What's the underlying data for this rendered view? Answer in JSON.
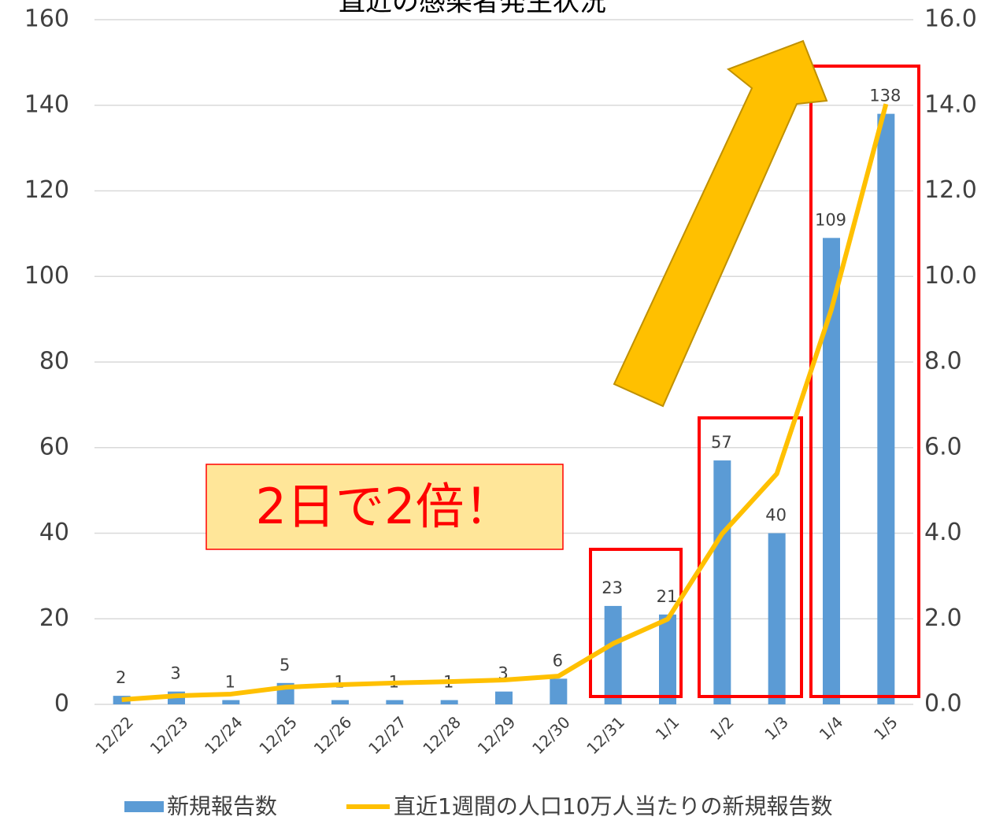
{
  "chart_data": {
    "type": "bar_line",
    "title": "直近の感染者発生状況",
    "categories": [
      "12/22",
      "12/23",
      "12/24",
      "12/25",
      "12/26",
      "12/27",
      "12/28",
      "12/29",
      "12/30",
      "12/31",
      "1/1",
      "1/2",
      "1/3",
      "1/4",
      "1/5"
    ],
    "series": [
      {
        "name": "新規報告数",
        "color": "#5b9bd5",
        "type": "bar",
        "values": [
          2,
          3,
          1,
          5,
          1,
          1,
          1,
          3,
          6,
          23,
          21,
          57,
          40,
          109,
          138
        ]
      },
      {
        "name": "直近1週間の人口10万人当たりの新規報告数",
        "color": "#ffc000",
        "type": "line",
        "axis": "y2",
        "values": [
          0.11,
          0.2,
          0.24,
          0.4,
          0.46,
          0.5,
          0.53,
          0.57,
          0.66,
          1.42,
          1.99,
          3.99,
          5.39,
          9.23,
          14.03
        ]
      }
    ],
    "ylim": [
      0,
      160
    ],
    "yticks": [
      0,
      20,
      40,
      60,
      80,
      100,
      120,
      140,
      160
    ],
    "y2lim": [
      0,
      16
    ],
    "y2ticks": [
      {
        "value": 0,
        "label": "0.0"
      },
      {
        "value": 2,
        "label": "2.0"
      },
      {
        "value": 4,
        "label": "4.0"
      },
      {
        "value": 6,
        "label": "6.0"
      },
      {
        "value": 8,
        "label": "8.0"
      },
      {
        "value": 10,
        "label": "10.0"
      },
      {
        "value": 12,
        "label": "12.0"
      },
      {
        "value": 14,
        "label": "14.0"
      },
      {
        "value": 16,
        "label": "16.0"
      }
    ],
    "grid": true,
    "annotation": "2日で2倍！",
    "legend": "bottom"
  }
}
